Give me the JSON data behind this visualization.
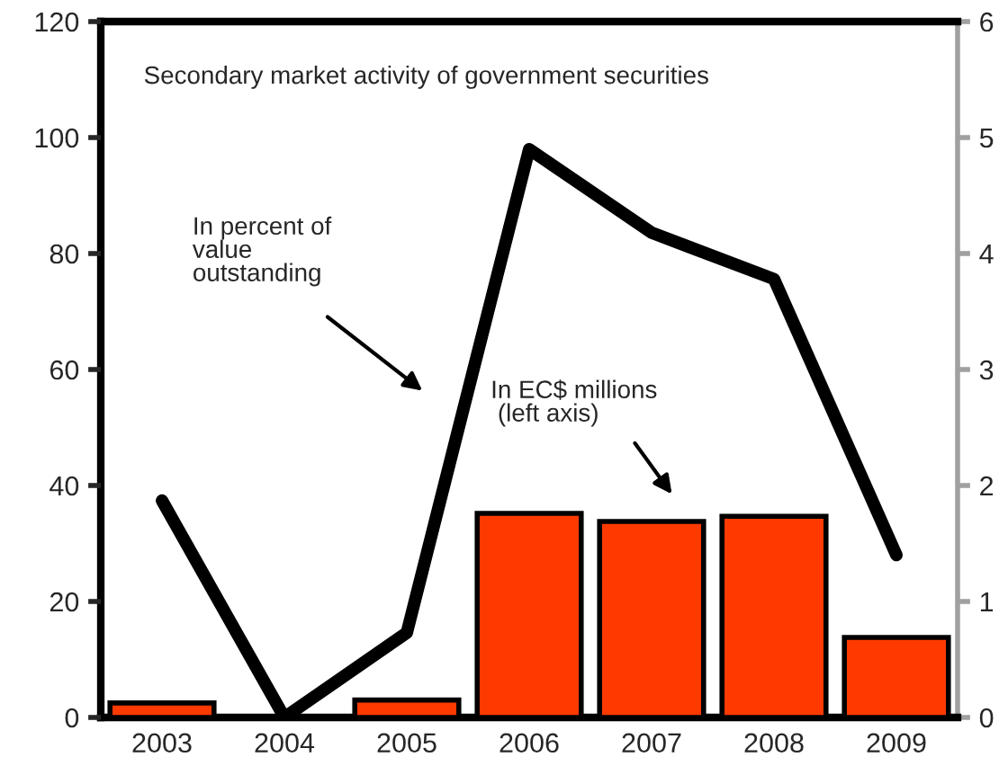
{
  "chart_data": {
    "type": "bar",
    "title": "Secondary market activity of government securities",
    "categories": [
      "2003",
      "2004",
      "2005",
      "2006",
      "2007",
      "2008",
      "2009"
    ],
    "series": [
      {
        "color": "#ff3a00",
        "values": [
          2.5,
          null,
          3.0,
          35.2,
          33.8,
          34.7,
          13.8
        ]
      },
      {
        "type": "line",
        "axis": "y2",
        "color": "#000000",
        "values": [
          1.87,
          0,
          0.73,
          4.9,
          4.18,
          3.78,
          1.4
        ]
      }
    ],
    "ylim": [
      0,
      120
    ],
    "yticks": [
      0,
      20,
      40,
      60,
      80,
      100,
      120
    ],
    "y2lim": [
      0,
      6
    ],
    "y2ticks": [
      0,
      1,
      2,
      3,
      4,
      5,
      6
    ],
    "annotations": [
      "In percent of\nvalue\noutstanding",
      "In EC$ millions\n (left axis)"
    ],
    "grid": false,
    "legend": false
  }
}
